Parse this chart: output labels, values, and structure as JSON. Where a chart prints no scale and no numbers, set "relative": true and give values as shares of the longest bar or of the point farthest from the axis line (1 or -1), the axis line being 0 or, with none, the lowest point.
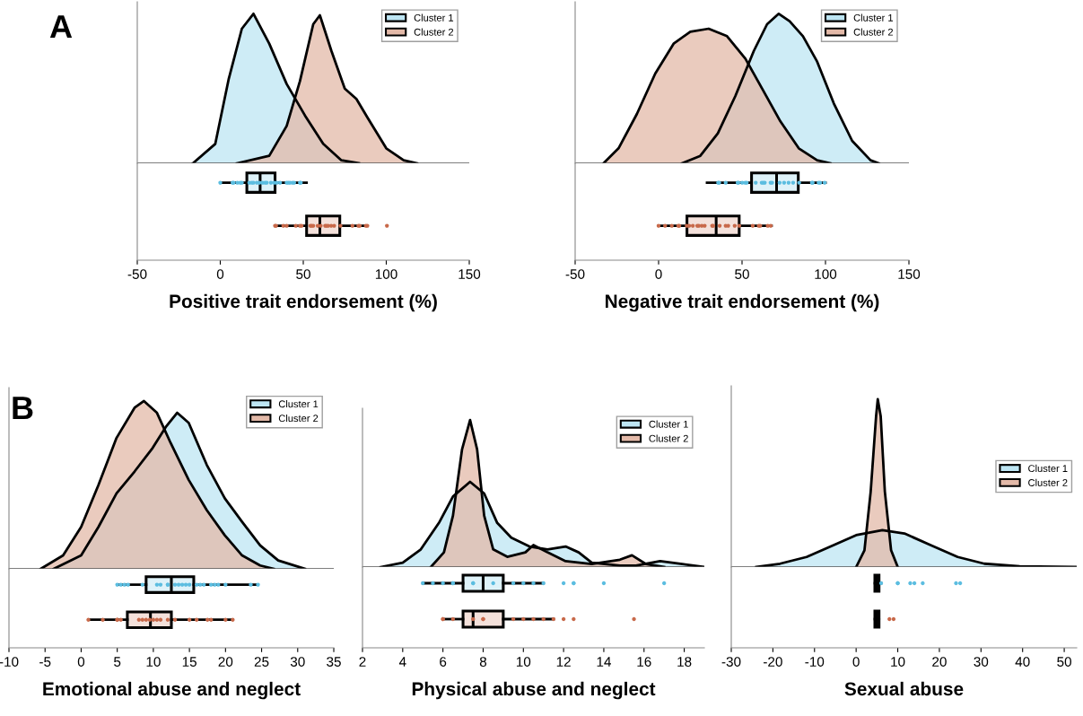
{
  "chart_data": [
    {
      "type": "area",
      "relative": true,
      "title": "A",
      "legend": "top right",
      "xlim": [
        -50,
        150
      ],
      "series": [
        {
          "name": "Cluster 1",
          "color": "#bde5f3",
          "x": [
            -16.5,
            -3,
            5,
            13,
            20,
            29.5,
            40,
            51,
            62,
            73,
            83.5
          ],
          "values": [
            0,
            0.13,
            0.56,
            0.9,
            1,
            0.8,
            0.53,
            0.32,
            0.13,
            0.02,
            0
          ]
        },
        {
          "name": "Cluster 2",
          "color": "#e3b9a8",
          "x": [
            10,
            29.5,
            40,
            48,
            56,
            60,
            67,
            75,
            82,
            89,
            100,
            110.5,
            118.6
          ],
          "values": [
            0,
            0.05,
            0.25,
            0.55,
            0.93,
            0.99,
            0.75,
            0.5,
            0.43,
            0.3,
            0.1,
            0.02,
            0
          ]
        }
      ]
    },
    {
      "type": "box",
      "orientation": "horizontal",
      "categories": [
        null,
        null
      ],
      "xlim": [
        -50,
        150
      ],
      "xticks": [
        -50,
        0,
        50,
        100,
        150
      ],
      "xlabel": "Positive trait endorsement (%)",
      "series": [
        {
          "color": "#5bbde0",
          "boxes": [
            {
              "low": 0,
              "q1": 16,
              "median": 24,
              "q3": 33,
              "high": 52,
              "outliers": [
                0,
                7.4,
                8,
                10.3,
                12,
                13,
                17.5,
                19,
                20,
                22,
                23.6,
                25.5,
                27,
                28,
                30.5,
                32.5,
                34,
                36,
                40,
                41,
                42,
                43.5,
                44.5,
                48,
                48.5
              ]
            },
            null
          ]
        },
        {
          "color": "#c8694a",
          "boxes": [
            null,
            {
              "low": 33,
              "q1": 52,
              "median": 60,
              "q3": 72,
              "high": 88,
              "outliers": [
                33,
                33.6,
                38,
                40,
                45.5,
                48,
                49,
                54.3,
                55,
                56,
                58.7,
                60.5,
                63.2,
                64,
                65,
                66.8,
                68.6,
                72.4,
                79.6,
                83.2,
                84,
                87.7,
                88.6,
                100.4
              ]
            }
          ]
        }
      ]
    },
    {
      "type": "area",
      "relative": true,
      "legend": "top right",
      "xlim": [
        -50,
        150
      ],
      "series": [
        {
          "name": "Cluster 1",
          "color": "#bde5f3",
          "x": [
            14,
            25,
            35.5,
            46,
            57,
            65,
            72,
            78.5,
            86.5,
            95,
            105,
            116,
            127,
            132
          ],
          "values": [
            0,
            0.05,
            0.2,
            0.45,
            0.75,
            0.93,
            1,
            0.95,
            0.85,
            0.68,
            0.4,
            0.15,
            0.02,
            0
          ]
        },
        {
          "name": "Cluster 2",
          "color": "#e3b9a8",
          "x": [
            -33,
            -24,
            -13,
            -2,
            9,
            19,
            30,
            41,
            52,
            62,
            73,
            84,
            95,
            103
          ],
          "values": [
            0,
            0.1,
            0.33,
            0.6,
            0.8,
            0.88,
            0.9,
            0.85,
            0.7,
            0.5,
            0.28,
            0.1,
            0.02,
            0
          ]
        }
      ]
    },
    {
      "type": "box",
      "orientation": "horizontal",
      "categories": [
        null,
        null
      ],
      "xlim": [
        -50,
        150
      ],
      "xticks": [
        -50,
        0,
        50,
        100,
        150
      ],
      "xlabel": "Negative trait endorsement (%)",
      "series": [
        {
          "color": "#5bbde0",
          "boxes": [
            {
              "low": 29,
              "q1": 55.7,
              "median": 70.7,
              "q3": 83.7,
              "high": 100,
              "outliers": [
                35.7,
                36.3,
                40.2,
                47.4,
                47.8,
                50.1,
                51.9,
                52.8,
                58.2,
                61.8,
                62.7,
                63.6,
                67.1,
                68,
                72.5,
                75.2,
                77.9,
                80.6,
                84.2,
                91.9,
                92.3,
                95.9,
                96.8,
                99.5
              ]
            },
            null
          ]
        },
        {
          "color": "#c8694a",
          "boxes": [
            null,
            {
              "low": 0,
              "q1": 17,
              "median": 34.5,
              "q3": 48.3,
              "high": 67.7,
              "outliers": [
                0,
                3.9,
                7.9,
                11.8,
                12.4,
                16.9,
                18.3,
                20.5,
                23.2,
                24.1,
                25.9,
                27.6,
                32.1,
                32.7,
                36.6,
                40.2,
                41.7,
                45.6,
                48.3,
                56.4,
                60,
                60.9,
                65.4,
                67.2
              ]
            }
          ]
        }
      ]
    },
    {
      "type": "area",
      "relative": true,
      "title": "B",
      "legend": "top right",
      "xlim": [
        -10,
        35
      ],
      "series": [
        {
          "name": "Cluster 1",
          "color": "#bde5f3",
          "x": [
            -3.8,
            0,
            2.4,
            4.9,
            7.4,
            9.9,
            11.8,
            13.3,
            14.9,
            17.4,
            19.9,
            22.3,
            24.8,
            27.3,
            31
          ],
          "values": [
            0,
            0.08,
            0.25,
            0.45,
            0.58,
            0.72,
            0.85,
            0.93,
            0.87,
            0.62,
            0.42,
            0.28,
            0.14,
            0.05,
            0
          ]
        },
        {
          "name": "Cluster 2",
          "color": "#e3b9a8",
          "x": [
            -5.6,
            -2.5,
            0,
            2.4,
            4.9,
            7.4,
            8.7,
            10.5,
            12.4,
            14.9,
            17.4,
            19.9,
            22.3,
            24.8,
            26.7
          ],
          "values": [
            0,
            0.08,
            0.25,
            0.5,
            0.78,
            0.96,
            1,
            0.93,
            0.75,
            0.53,
            0.35,
            0.2,
            0.08,
            0.02,
            0
          ]
        }
      ]
    },
    {
      "type": "box",
      "orientation": "horizontal",
      "categories": [
        null,
        null
      ],
      "xlim": [
        -10,
        35
      ],
      "xticks": [
        -10,
        -5,
        0,
        5,
        10,
        15,
        20,
        25,
        30,
        35
      ],
      "xlabel": "Emotional abuse and neglect",
      "series": [
        {
          "color": "#5bbde0",
          "boxes": [
            {
              "low": 5,
              "q1": 9,
              "median": 12.5,
              "q3": 15.6,
              "high": 24.5,
              "outliers": [
                5,
                5.5,
                6,
                6.5,
                8.5,
                10.5,
                11,
                12,
                12,
                13,
                13.5,
                14,
                14.5,
                15,
                16,
                16.5,
                17,
                18,
                18.5,
                19,
                20,
                23.5,
                24.5
              ]
            },
            null
          ]
        },
        {
          "color": "#c8694a",
          "boxes": [
            null,
            {
              "low": 1,
              "q1": 6.4,
              "median": 9.6,
              "q3": 12.5,
              "high": 21,
              "outliers": [
                1,
                3,
                5,
                5,
                5.5,
                8,
                8.5,
                9,
                9.5,
                10,
                10.5,
                11,
                12,
                13,
                15,
                16,
                17.5,
                18,
                20,
                21
              ]
            }
          ]
        }
      ]
    },
    {
      "type": "area",
      "relative": true,
      "legend": "top right",
      "xlim": [
        2,
        19
      ],
      "series": [
        {
          "name": "Cluster 1",
          "color": "#bde5f3",
          "x": [
            2.9,
            4,
            4.9,
            5.8,
            6.5,
            7.35,
            8.05,
            8.7,
            9.4,
            10.3,
            11.2,
            12.1,
            12.75,
            13.4,
            14.8,
            15.6,
            16.8,
            17.9,
            19
          ],
          "values": [
            0,
            0.03,
            0.12,
            0.3,
            0.48,
            0.58,
            0.5,
            0.3,
            0.2,
            0.14,
            0.12,
            0.14,
            0.1,
            0.03,
            0.01,
            0.01,
            0.04,
            0.02,
            0
          ]
        },
        {
          "name": "Cluster 2",
          "color": "#e3b9a8",
          "x": [
            5.4,
            6.05,
            6.5,
            6.95,
            7.35,
            7.7,
            8.05,
            8.5,
            9.2,
            10.1,
            10.5,
            11.2,
            12.1,
            13.4,
            14.8,
            15.4,
            16.1,
            17
          ],
          "values": [
            0,
            0.1,
            0.35,
            0.8,
            1,
            0.8,
            0.35,
            0.12,
            0.07,
            0.1,
            0.15,
            0.1,
            0.04,
            0.02,
            0.05,
            0.08,
            0.02,
            0
          ]
        }
      ]
    },
    {
      "type": "box",
      "orientation": "horizontal",
      "categories": [
        null,
        null
      ],
      "xlim": [
        2,
        19
      ],
      "xticks": [
        2,
        4,
        6,
        8,
        10,
        12,
        14,
        16,
        18
      ],
      "xlabel": "Physical abuse and neglect",
      "series": [
        {
          "color": "#5bbde0",
          "boxes": [
            {
              "low": 5,
              "q1": 7,
              "median": 8,
              "q3": 9,
              "high": 11,
              "outliers": [
                5,
                5.5,
                6,
                6.5,
                6.5,
                7.5,
                7.5,
                8.5,
                9.5,
                10,
                10.5,
                11,
                12,
                12.5,
                12.5,
                14,
                17
              ]
            },
            null
          ]
        },
        {
          "color": "#c8694a",
          "boxes": [
            null,
            {
              "low": 6,
              "q1": 7,
              "median": 7.5,
              "q3": 9,
              "high": 11.5,
              "outliers": [
                6,
                6,
                6.5,
                7.5,
                8,
                8,
                9.5,
                10,
                10.5,
                11,
                11.5,
                12,
                12.5,
                15.5
              ]
            }
          ]
        }
      ]
    },
    {
      "type": "area",
      "relative": true,
      "legend": "right",
      "xlim": [
        -30,
        53
      ],
      "series": [
        {
          "name": "Cluster 1",
          "color": "#bde5f3",
          "x": [
            -24,
            -18.3,
            -11.9,
            -5.5,
            0,
            6.3,
            11.6,
            18,
            24.4,
            30.8,
            39.3,
            53
          ],
          "values": [
            0,
            0.02,
            0.06,
            0.13,
            0.19,
            0.22,
            0.2,
            0.13,
            0.06,
            0.02,
            0.005,
            0
          ]
        },
        {
          "name": "Cluster 2",
          "color": "#e3b9a8",
          "x": [
            0,
            2,
            3.5,
            4.8,
            5.2,
            5.9,
            6.9,
            8.4,
            10
          ],
          "values": [
            0,
            0.1,
            0.45,
            0.9,
            1,
            0.9,
            0.45,
            0.1,
            0
          ]
        }
      ]
    },
    {
      "type": "box",
      "orientation": "horizontal",
      "categories": [
        null,
        null
      ],
      "xlim": [
        -30,
        53
      ],
      "xticks": [
        -30,
        -20,
        -10,
        0,
        10,
        20,
        30,
        40,
        50
      ],
      "xlabel": "Sexual abuse",
      "series": [
        {
          "color": "#5bbde0",
          "boxes": [
            {
              "low": 4.5,
              "q1": 4.5,
              "median": 5,
              "q3": 5.5,
              "high": 6,
              "outliers": [
                6,
                10,
                10,
                13,
                14,
                16,
                24,
                25
              ]
            },
            null
          ]
        },
        {
          "color": "#c8694a",
          "boxes": [
            null,
            {
              "low": 4.5,
              "q1": 4.5,
              "median": 5,
              "q3": 5.5,
              "high": 5.5,
              "outliers": [
                8,
                9
              ]
            }
          ]
        }
      ]
    }
  ]
}
